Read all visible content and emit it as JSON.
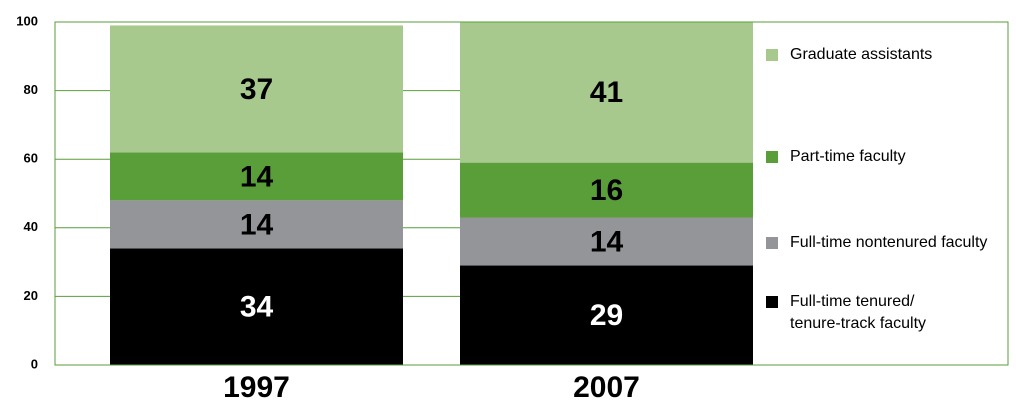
{
  "chart_data": {
    "type": "stacked_bar",
    "categories": [
      "1997",
      "2007"
    ],
    "series": [
      {
        "name": "Full-time tenured/\ntenure-track faculty",
        "color": "#000000",
        "values": [
          34,
          29
        ]
      },
      {
        "name": "Full-time nontenured faculty",
        "color": "#939598",
        "values": [
          14,
          14
        ]
      },
      {
        "name": "Part-time faculty",
        "color": "#5a9e3a",
        "values": [
          14,
          16
        ]
      },
      {
        "name": "Graduate assistants",
        "color": "#a8c98e",
        "values": [
          37,
          41
        ]
      }
    ],
    "ylim": [
      0,
      100
    ],
    "yticks": [
      0,
      20,
      40,
      60,
      80,
      100
    ],
    "grid": true,
    "legend": "right"
  }
}
